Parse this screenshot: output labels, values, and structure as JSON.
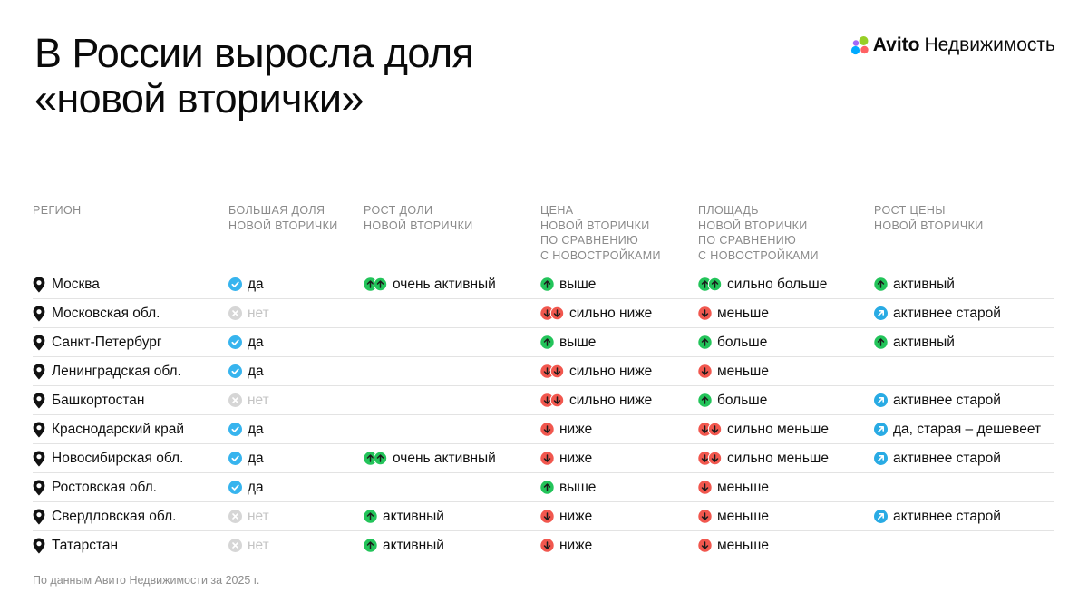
{
  "title_line1": "В России выросла доля",
  "title_line2": "«новой вторички»",
  "brand": {
    "name": "Avito",
    "suffix": "Недвижимость"
  },
  "colors": {
    "check": "#37b4ee",
    "up": "#23c45a",
    "down": "#f1574e",
    "diag": "#29abe4",
    "no": "#d6d6d6"
  },
  "headers": {
    "region": "РЕГИОН",
    "share": "БОЛЬШАЯ ДОЛЯ\nНОВОЙ ВТОРИЧКИ",
    "growth": "РОСТ ДОЛИ\nНОВОЙ ВТОРИЧКИ",
    "price": "ЦЕНА\nНОВОЙ ВТОРИЧКИ\nПО СРАВНЕНИЮ\nС НОВОСТРОЙКАМИ",
    "area": "ПЛОЩАДЬ\nНОВОЙ ВТОРИЧКИ\nПО СРАВНЕНИЮ\nС НОВОСТРОЙКАМИ",
    "pricegrowth": "РОСТ ЦЕНЫ\nНОВОЙ ВТОРИЧКИ"
  },
  "rows": [
    {
      "region": "Москва",
      "share": {
        "icon": "check",
        "text": "да"
      },
      "growth": {
        "icon": "up2",
        "text": "очень активный"
      },
      "price": {
        "icon": "up",
        "text": "выше"
      },
      "area": {
        "icon": "up2",
        "text": "сильно больше"
      },
      "pricegrowth": {
        "icon": "up",
        "text": "активный"
      }
    },
    {
      "region": "Московская обл.",
      "share": {
        "icon": "no",
        "text": "нет"
      },
      "growth": null,
      "price": {
        "icon": "down2",
        "text": "сильно ниже"
      },
      "area": {
        "icon": "down",
        "text": "меньше"
      },
      "pricegrowth": {
        "icon": "diag",
        "text": "активнее старой"
      }
    },
    {
      "region": "Санкт-Петербург",
      "share": {
        "icon": "check",
        "text": "да"
      },
      "growth": null,
      "price": {
        "icon": "up",
        "text": "выше"
      },
      "area": {
        "icon": "up",
        "text": "больше"
      },
      "pricegrowth": {
        "icon": "up",
        "text": "активный"
      }
    },
    {
      "region": "Ленинградская обл.",
      "share": {
        "icon": "check",
        "text": "да"
      },
      "growth": null,
      "price": {
        "icon": "down2",
        "text": "сильно ниже"
      },
      "area": {
        "icon": "down",
        "text": "меньше"
      },
      "pricegrowth": null
    },
    {
      "region": "Башкортостан",
      "share": {
        "icon": "no",
        "text": "нет"
      },
      "growth": null,
      "price": {
        "icon": "down2",
        "text": "сильно ниже"
      },
      "area": {
        "icon": "up",
        "text": "больше"
      },
      "pricegrowth": {
        "icon": "diag",
        "text": "активнее старой"
      }
    },
    {
      "region": "Краснодарский край",
      "share": {
        "icon": "check",
        "text": "да"
      },
      "growth": null,
      "price": {
        "icon": "down",
        "text": "ниже"
      },
      "area": {
        "icon": "down2",
        "text": "сильно меньше"
      },
      "pricegrowth": {
        "icon": "diag",
        "text": "да, старая – дешевеет"
      }
    },
    {
      "region": "Новосибирская обл.",
      "share": {
        "icon": "check",
        "text": "да"
      },
      "growth": {
        "icon": "up2",
        "text": "очень активный"
      },
      "price": {
        "icon": "down",
        "text": "ниже"
      },
      "area": {
        "icon": "down2",
        "text": "сильно меньше"
      },
      "pricegrowth": {
        "icon": "diag",
        "text": "активнее старой"
      }
    },
    {
      "region": "Ростовская обл.",
      "share": {
        "icon": "check",
        "text": "да"
      },
      "growth": null,
      "price": {
        "icon": "up",
        "text": "выше"
      },
      "area": {
        "icon": "down",
        "text": "меньше"
      },
      "pricegrowth": null
    },
    {
      "region": "Свердловская обл.",
      "share": {
        "icon": "no",
        "text": "нет"
      },
      "growth": {
        "icon": "up",
        "text": "активный"
      },
      "price": {
        "icon": "down",
        "text": "ниже"
      },
      "area": {
        "icon": "down",
        "text": "меньше"
      },
      "pricegrowth": {
        "icon": "diag",
        "text": "активнее старой"
      }
    },
    {
      "region": "Татарстан",
      "share": {
        "icon": "no",
        "text": "нет"
      },
      "growth": {
        "icon": "up",
        "text": "активный"
      },
      "price": {
        "icon": "down",
        "text": "ниже"
      },
      "area": {
        "icon": "down",
        "text": "меньше"
      },
      "pricegrowth": null
    }
  ],
  "footer": "По данным Авито Недвижимости за 2025 г."
}
